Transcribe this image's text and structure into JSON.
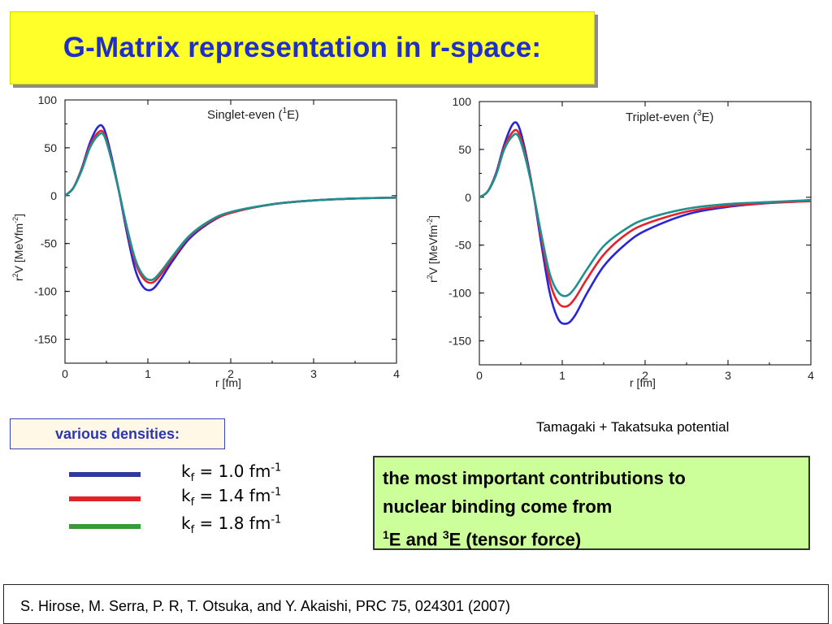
{
  "title": "G-Matrix representation in r-space:",
  "colors": {
    "blue": "#2626d8",
    "red": "#e8202a",
    "teal": "#1f8f8f",
    "legend_green": "#3a9a3a"
  },
  "densities_label": "various densities:",
  "source_note": "Tamagaki + Takatsuka potential",
  "legend": [
    {
      "k": "k",
      "sub": "f",
      "value": " = 1.0  fm",
      "sup": "-1",
      "color": "#2e3a9c"
    },
    {
      "k": "k",
      "sub": "f",
      "value": " = 1.4  fm",
      "sup": "-1",
      "color": "#e0222a"
    },
    {
      "k": "k",
      "sub": "f",
      "value": " = 1.8  fm",
      "sup": "-1",
      "color": "#3a9a3a"
    }
  ],
  "note": {
    "line1": "the most important contributions to",
    "line2": "nuclear binding come from",
    "line3_a": "1",
    "line3_b": "E and ",
    "line3_c": "3",
    "line3_d": "E (tensor force)"
  },
  "citation": "S. Hirose, M. Serra, P. R, T. Otsuka, and Y. Akaishi, PRC 75, 024301 (2007)",
  "chart_data": [
    {
      "type": "line",
      "panel_title": {
        "pre": "Singlet-even (",
        "sup": "1",
        "post": "E)"
      },
      "xlabel": "r [fm]",
      "ylabel": {
        "a": "r",
        "b": "2",
        "c": "V [MeVfm",
        "d": "-2",
        "e": "]"
      },
      "xlim": [
        0,
        4
      ],
      "ylim": [
        -175,
        100
      ],
      "xticks": [
        0,
        1,
        2,
        3,
        4
      ],
      "yticks": [
        100,
        50,
        0,
        -50,
        -100,
        -150
      ],
      "series": [
        {
          "color": "#2626d8",
          "x": [
            0,
            0.1,
            0.2,
            0.3,
            0.4,
            0.47,
            0.55,
            0.65,
            0.75,
            0.85,
            0.95,
            1.05,
            1.15,
            1.3,
            1.5,
            1.75,
            2.0,
            2.5,
            3.0,
            3.5,
            4.0
          ],
          "y": [
            0,
            8,
            28,
            55,
            72,
            70,
            45,
            5,
            -40,
            -78,
            -96,
            -98,
            -88,
            -68,
            -45,
            -28,
            -18,
            -9,
            -5,
            -3,
            -2
          ]
        },
        {
          "color": "#e8202a",
          "x": [
            0,
            0.1,
            0.2,
            0.3,
            0.4,
            0.47,
            0.55,
            0.65,
            0.75,
            0.85,
            0.95,
            1.05,
            1.15,
            1.3,
            1.5,
            1.75,
            2.0,
            2.5,
            3.0,
            3.5,
            4.0
          ],
          "y": [
            0,
            8,
            27,
            52,
            66,
            65,
            42,
            5,
            -36,
            -70,
            -87,
            -91,
            -83,
            -65,
            -43,
            -27,
            -18,
            -9,
            -5,
            -3,
            -2
          ]
        },
        {
          "color": "#1f8f8f",
          "x": [
            0,
            0.1,
            0.2,
            0.3,
            0.4,
            0.47,
            0.55,
            0.65,
            0.75,
            0.85,
            0.95,
            1.05,
            1.15,
            1.3,
            1.5,
            1.75,
            2.0,
            2.5,
            3.0,
            3.5,
            4.0
          ],
          "y": [
            0,
            8,
            26,
            50,
            63,
            63,
            41,
            5,
            -34,
            -67,
            -84,
            -88,
            -80,
            -63,
            -42,
            -26,
            -17,
            -9,
            -5,
            -3,
            -2
          ]
        }
      ]
    },
    {
      "type": "line",
      "panel_title": {
        "pre": "Triplet-even (",
        "sup": "3",
        "post": "E)"
      },
      "xlabel": "r [fm]",
      "ylabel": {
        "a": "r",
        "b": "2",
        "c": "V [MeVfm",
        "d": "-2",
        "e": "]"
      },
      "xlim": [
        0,
        4
      ],
      "ylim": [
        -175,
        100
      ],
      "xticks": [
        0,
        1,
        2,
        3,
        4
      ],
      "yticks": [
        100,
        50,
        0,
        -50,
        -100,
        -150
      ],
      "series": [
        {
          "color": "#2626d8",
          "x": [
            0,
            0.1,
            0.2,
            0.3,
            0.4,
            0.47,
            0.55,
            0.65,
            0.75,
            0.85,
            0.95,
            1.05,
            1.15,
            1.3,
            1.5,
            1.75,
            2.0,
            2.5,
            3.0,
            3.5,
            4.0
          ],
          "y": [
            0,
            6,
            25,
            55,
            76,
            75,
            50,
            5,
            -50,
            -100,
            -127,
            -132,
            -124,
            -100,
            -72,
            -50,
            -35,
            -18,
            -10,
            -6,
            -3
          ]
        },
        {
          "color": "#e8202a",
          "x": [
            0,
            0.1,
            0.2,
            0.3,
            0.4,
            0.47,
            0.55,
            0.65,
            0.75,
            0.85,
            0.95,
            1.05,
            1.15,
            1.3,
            1.5,
            1.75,
            2.0,
            2.5,
            3.0,
            3.5,
            4.0
          ],
          "y": [
            0,
            6,
            24,
            52,
            68,
            68,
            46,
            5,
            -44,
            -88,
            -110,
            -114,
            -106,
            -85,
            -60,
            -40,
            -28,
            -15,
            -9,
            -6,
            -4
          ]
        },
        {
          "color": "#1f8f8f",
          "x": [
            0,
            0.1,
            0.2,
            0.3,
            0.4,
            0.47,
            0.55,
            0.65,
            0.75,
            0.85,
            0.95,
            1.05,
            1.15,
            1.3,
            1.5,
            1.75,
            2.0,
            2.5,
            3.0,
            3.5,
            4.0
          ],
          "y": [
            0,
            6,
            23,
            50,
            64,
            64,
            43,
            5,
            -40,
            -80,
            -99,
            -103,
            -95,
            -75,
            -51,
            -34,
            -23,
            -12,
            -7,
            -5,
            -3
          ]
        }
      ]
    }
  ]
}
